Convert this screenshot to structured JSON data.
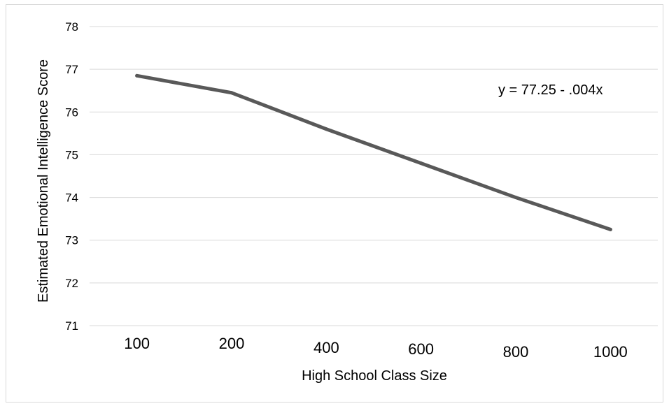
{
  "chart_data": {
    "type": "line",
    "title": "",
    "xlabel": "High School Class Size",
    "ylabel": "Estimated Emotional Intelligence Score",
    "categories": [
      "100",
      "200",
      "400",
      "600",
      "800",
      "1000"
    ],
    "series": [
      {
        "values": [
          76.85,
          76.45,
          75.6,
          74.8,
          74.0,
          73.25
        ]
      }
    ],
    "ylim": [
      71,
      78
    ],
    "yticks": [
      "71",
      "72",
      "73",
      "74",
      "75",
      "76",
      "77",
      "78"
    ],
    "grid": true,
    "legend": "none",
    "annotation": "y = 77.25 - .004x",
    "colors": {
      "line": "#595959",
      "grid": "#d9d9d9",
      "border": "#d9d9d9"
    }
  }
}
